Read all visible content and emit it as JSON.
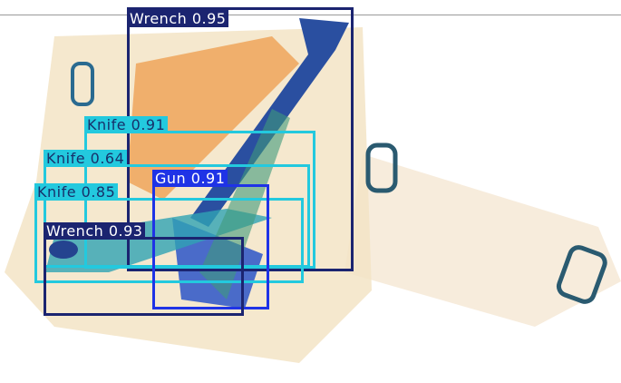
{
  "detections": [
    {
      "label": "Wrench 0.95",
      "color": "#1b2470",
      "text_color": "#ffffff"
    },
    {
      "label": "Knife 0.91",
      "color": "#23c9de",
      "text_color": "#17306a"
    },
    {
      "label": "Knife 0.64",
      "color": "#23c9de",
      "text_color": "#17306a"
    },
    {
      "label": "Knife 0.85",
      "color": "#23c9de",
      "text_color": "#17306a"
    },
    {
      "label": "Gun 0.91",
      "color": "#1f33e6",
      "text_color": "#ffffff"
    },
    {
      "label": "Wrench 0.93",
      "color": "#1b2470",
      "text_color": "#ffffff"
    }
  ]
}
